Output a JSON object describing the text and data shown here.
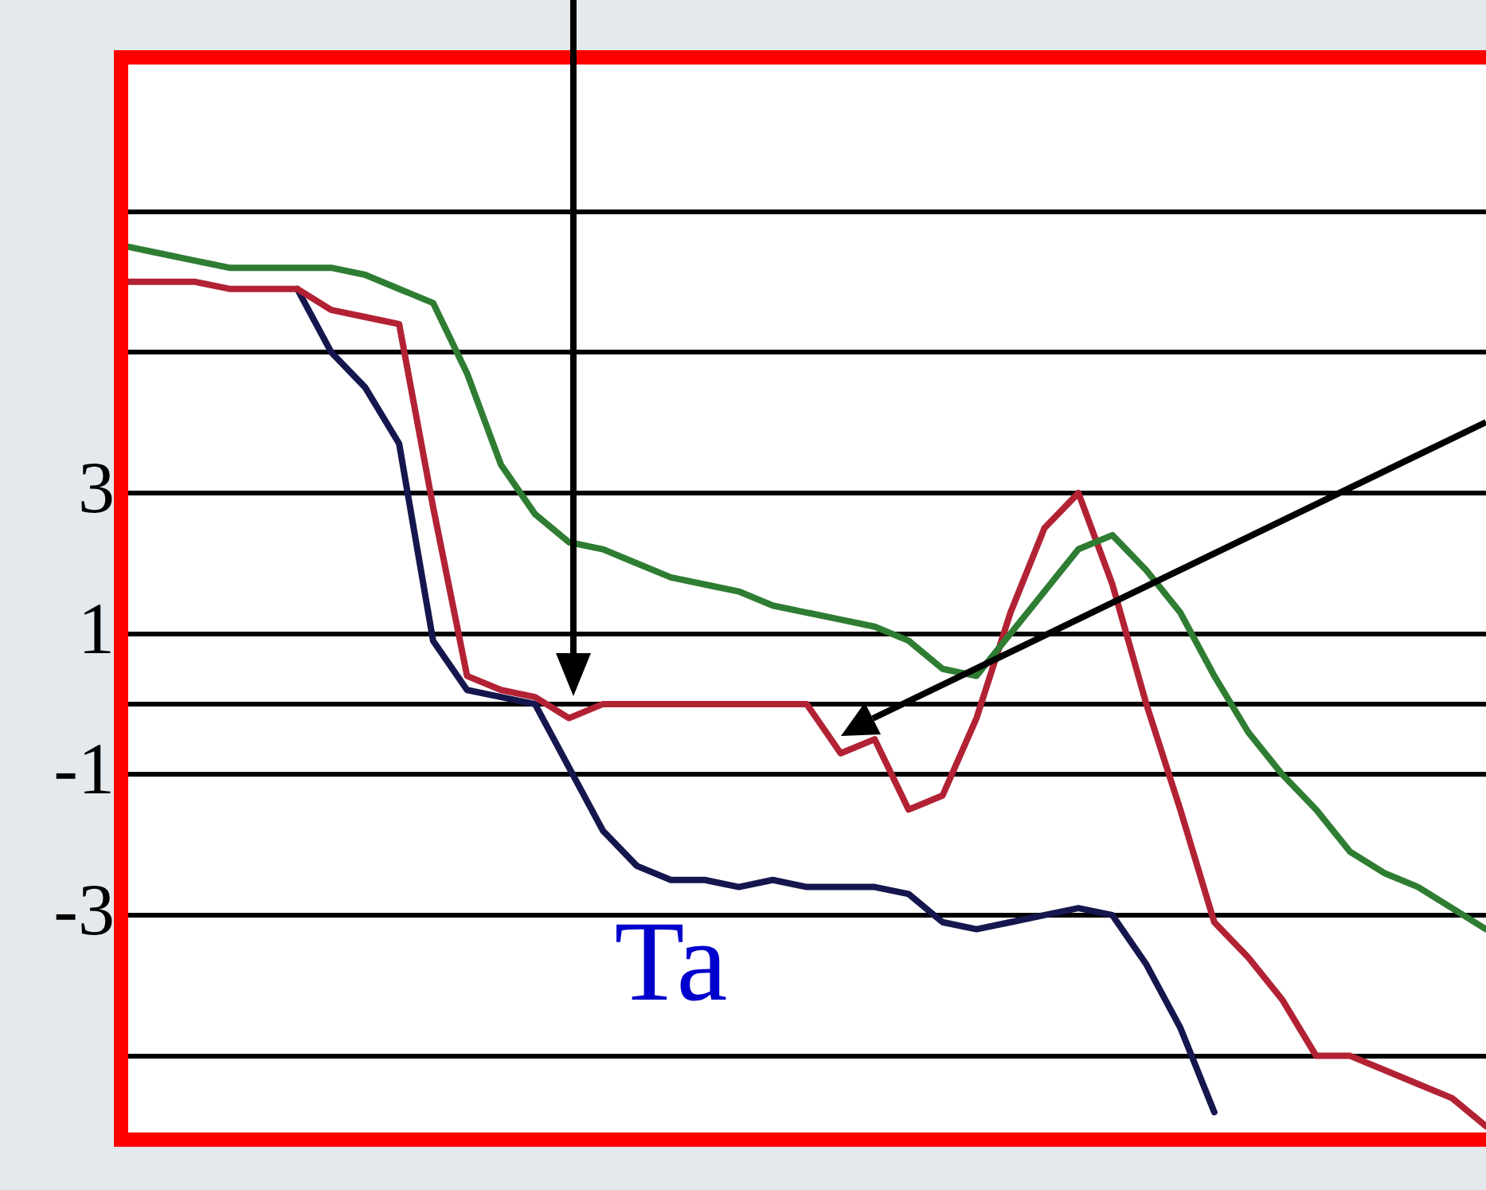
{
  "chart_data": {
    "type": "line",
    "categories": [
      null,
      null,
      null,
      null,
      null,
      null,
      null,
      null,
      null,
      null,
      null,
      null,
      null,
      null,
      null,
      null,
      null,
      null,
      null,
      null,
      null,
      null,
      null,
      null,
      null,
      null,
      null,
      null,
      null,
      null,
      null,
      null,
      null,
      null,
      null,
      null,
      null,
      null,
      null,
      null,
      null
    ],
    "ylim": [
      -6.1,
      9.1
    ],
    "yticks": [
      {
        "value": 7,
        "label": null
      },
      {
        "value": 5,
        "label": null
      },
      3,
      1,
      {
        "value": 0,
        "label": null
      },
      -1,
      -3,
      {
        "value": -5,
        "label": null
      }
    ],
    "grid": "y",
    "legend": false,
    "tick_labels": "y",
    "marker": "none",
    "line_style": "solid",
    "series": [
      {
        "color": "#2e7d32",
        "values": [
          6.5,
          6.4,
          6.3,
          6.2,
          6.2,
          6.2,
          6.2,
          6.1,
          5.9,
          5.7,
          4.7,
          3.4,
          2.7,
          2.3,
          2.2,
          2.0,
          1.8,
          1.7,
          1.6,
          1.4,
          1.3,
          1.2,
          1.1,
          0.9,
          0.5,
          0.4,
          1.0,
          1.6,
          2.2,
          2.4,
          1.9,
          1.3,
          0.4,
          -0.4,
          -1.0,
          -1.5,
          -2.1,
          -2.4,
          -2.6,
          -2.9,
          -3.2
        ]
      },
      {
        "color": "#b22234",
        "values": [
          6.0,
          6.0,
          6.0,
          5.9,
          5.9,
          5.9,
          5.6,
          5.5,
          5.4,
          2.8,
          0.4,
          0.2,
          0.1,
          -0.2,
          0,
          0,
          0,
          0,
          0,
          0,
          0,
          -0.7,
          -0.5,
          -1.5,
          -1.3,
          -0.2,
          1.3,
          2.5,
          3.0,
          1.7,
          0,
          -1.5,
          -3.1,
          -3.6,
          -4.2,
          -5.0,
          -5.0,
          -5.2,
          -5.4,
          -5.6,
          -6.0
        ]
      },
      {
        "name": "Ta",
        "color": "#16164e",
        "values": [
          null,
          null,
          null,
          null,
          null,
          5.9,
          5.0,
          4.5,
          3.7,
          0.9,
          0.2,
          0.1,
          0.0,
          -0.9,
          -1.8,
          -2.3,
          -2.5,
          -2.5,
          -2.6,
          -2.5,
          -2.6,
          -2.6,
          -2.6,
          -2.7,
          -3.1,
          -3.2,
          -3.1,
          -3.0,
          -2.9,
          -3.0,
          -3.7,
          -4.6,
          -5.8,
          null,
          null,
          null,
          null,
          null,
          null,
          null,
          null
        ]
      }
    ]
  }
}
